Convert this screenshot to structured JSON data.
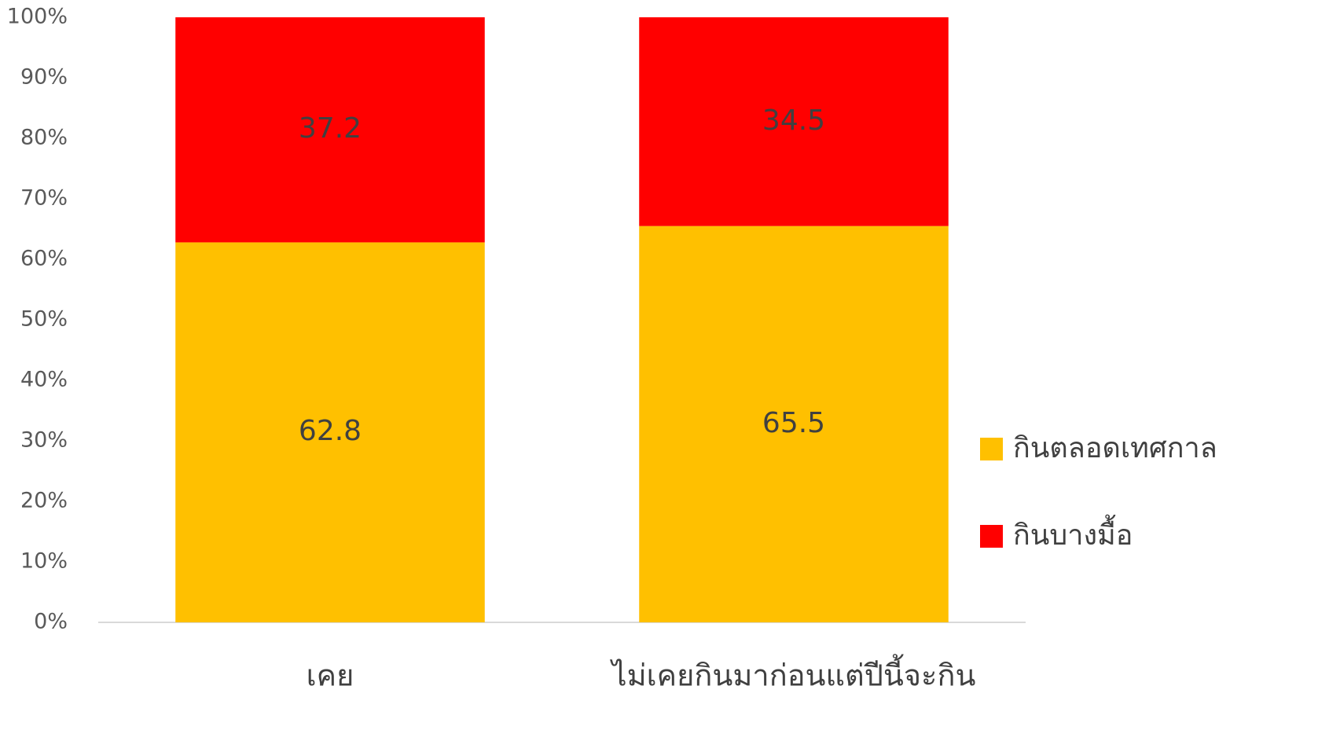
{
  "chart_data": {
    "type": "stacked_bar",
    "categories": [
      "เคย",
      "ไม่เคยกินมาก่อนแต่ปีนี้จะกิน"
    ],
    "series": [
      {
        "name": "กินตลอดเทศกาล",
        "color": "#ffc000",
        "values": [
          62.8,
          65.5
        ]
      },
      {
        "name": "กินบางมื้อ",
        "color": "#ff0000",
        "values": [
          37.2,
          34.5
        ]
      }
    ],
    "ylim": [
      0,
      100
    ],
    "yticks": [
      {
        "value": 0,
        "label": "0%"
      },
      {
        "value": 10,
        "label": "10%"
      },
      {
        "value": 20,
        "label": "20%"
      },
      {
        "value": 30,
        "label": "30%"
      },
      {
        "value": 40,
        "label": "40%"
      },
      {
        "value": 50,
        "label": "50%"
      },
      {
        "value": 60,
        "label": "60%"
      },
      {
        "value": 70,
        "label": "70%"
      },
      {
        "value": 80,
        "label": "80%"
      },
      {
        "value": 90,
        "label": "90%"
      },
      {
        "value": 100,
        "label": "100%"
      }
    ],
    "grid": false,
    "legend": "right"
  }
}
